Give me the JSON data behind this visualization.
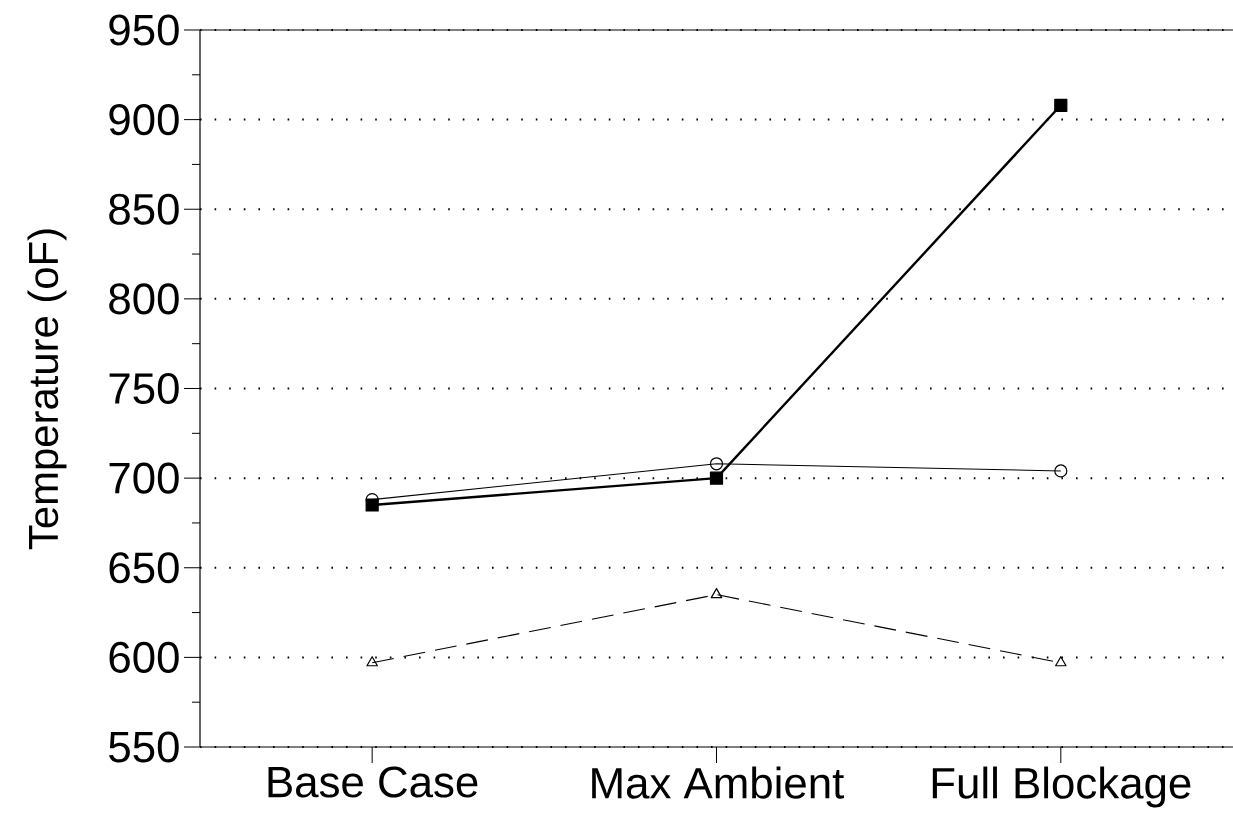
{
  "chart_data": {
    "type": "line",
    "ylabel": "Temperature (oF)",
    "categories": [
      "Base Case",
      "Max Ambient",
      "Full Blockage"
    ],
    "series": [
      {
        "color": "#000000",
        "values": [
          685,
          700,
          908
        ],
        "marker": "square",
        "line_style": "solid"
      },
      {
        "color": "#000000",
        "values": [
          688,
          708,
          704
        ],
        "marker": "circle",
        "line_style": "solid"
      },
      {
        "color": "#000000",
        "values": [
          597,
          635,
          597
        ],
        "marker": "triangle",
        "line_style": "dashed"
      }
    ],
    "ylim": [
      550,
      950
    ],
    "yticks": [
      550,
      600,
      650,
      700,
      750,
      800,
      850,
      900,
      950
    ],
    "grid": "y"
  }
}
